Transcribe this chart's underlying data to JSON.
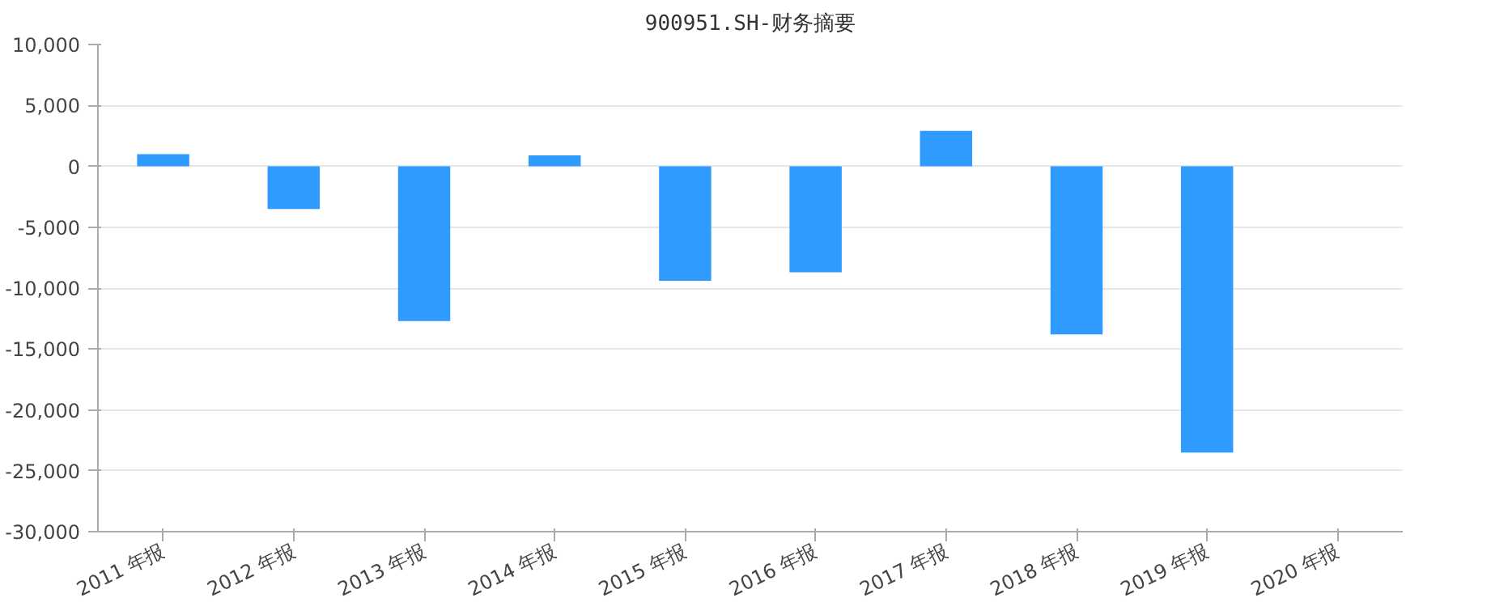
{
  "chart_data": {
    "type": "bar",
    "title": "900951.SH-财务摘要",
    "categories": [
      "2011 年报",
      "2012 年报",
      "2013 年报",
      "2014 年报",
      "2015 年报",
      "2016 年报",
      "2017 年报",
      "2018 年报",
      "2019 年报",
      "2020 年报"
    ],
    "values": [
      1000,
      -3500,
      -12700,
      900,
      -9400,
      -8700,
      2900,
      -13800,
      -23500,
      null
    ],
    "color": "#2f9bff",
    "ylim": [
      -30000,
      10000
    ],
    "yticks": [
      {
        "value": -30000,
        "label": "-30,000"
      },
      {
        "value": -25000,
        "label": "-25,000"
      },
      {
        "value": -20000,
        "label": "-20,000"
      },
      {
        "value": -15000,
        "label": "-15,000"
      },
      {
        "value": -10000,
        "label": "-10,000"
      },
      {
        "value": -5000,
        "label": "-5,000"
      },
      0,
      {
        "value": 5000,
        "label": "5,000"
      },
      {
        "value": 10000,
        "label": "10,000"
      }
    ],
    "grid": "y"
  }
}
